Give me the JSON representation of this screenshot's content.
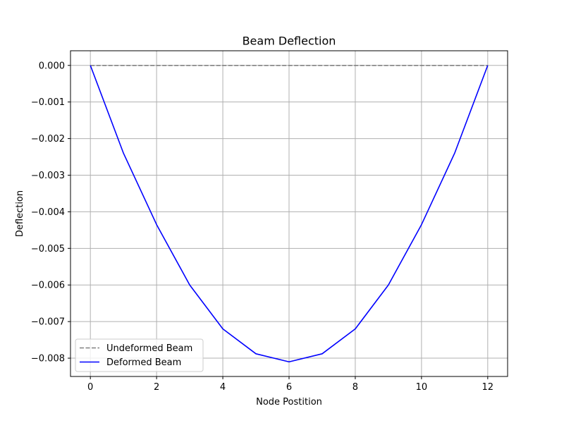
{
  "chart_data": {
    "type": "line",
    "title": "Beam Deflection",
    "xlabel": "Node Postition",
    "ylabel": "Deflection",
    "xlim": [
      -0.6,
      12.6
    ],
    "ylim": [
      -0.0085,
      0.0004
    ],
    "xticks": [
      0,
      2,
      4,
      6,
      8,
      10,
      12
    ],
    "xtick_labels": [
      "0",
      "2",
      "4",
      "6",
      "8",
      "10",
      "12"
    ],
    "yticks": [
      0.0,
      -0.001,
      -0.002,
      -0.003,
      -0.004,
      -0.005,
      -0.006,
      -0.007,
      -0.008
    ],
    "ytick_labels": [
      "0.000",
      "−0.001",
      "−0.002",
      "−0.003",
      "−0.004",
      "−0.005",
      "−0.006",
      "−0.007",
      "−0.008"
    ],
    "grid": true,
    "legend_position": "lower-left",
    "series": [
      {
        "name": "Undeformed Beam",
        "style": "dashed",
        "color": "#808080",
        "x": [
          0,
          1,
          2,
          3,
          4,
          5,
          6,
          7,
          8,
          9,
          10,
          11,
          12
        ],
        "values": [
          0,
          0,
          0,
          0,
          0,
          0,
          0,
          0,
          0,
          0,
          0,
          0,
          0
        ]
      },
      {
        "name": "Deformed Beam",
        "style": "solid",
        "color": "#0000ff",
        "x": [
          0,
          1,
          2,
          3,
          4,
          5,
          6,
          7,
          8,
          9,
          10,
          11,
          12
        ],
        "values": [
          0,
          -0.0024,
          -0.00435,
          -0.006,
          -0.0072,
          -0.00788,
          -0.0081,
          -0.00788,
          -0.0072,
          -0.006,
          -0.00435,
          -0.0024,
          0
        ]
      }
    ]
  }
}
